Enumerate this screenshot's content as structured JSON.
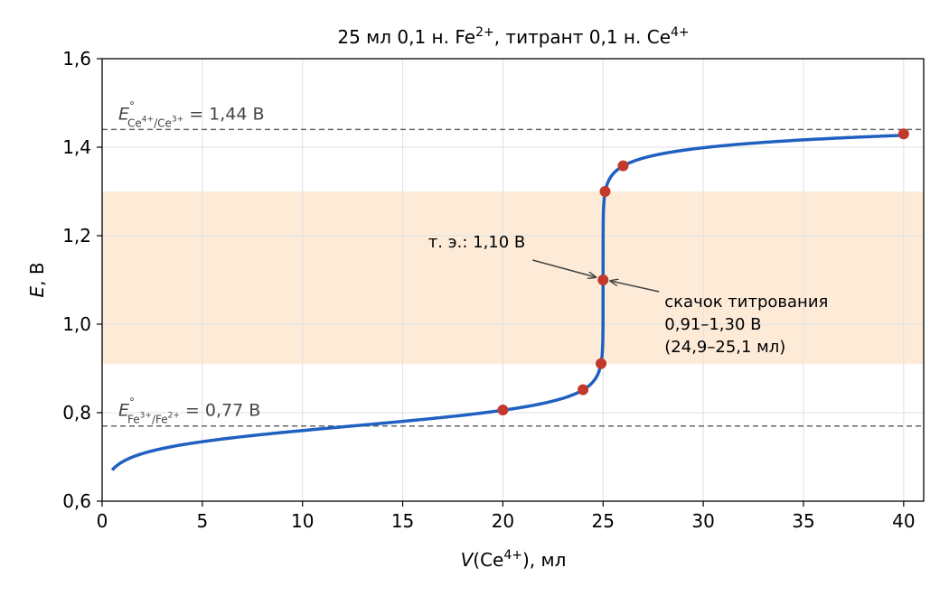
{
  "chart_data": {
    "type": "line",
    "title": {
      "pre": "25 мл 0,1 н. Fe",
      "sup1": "2+",
      "mid": ", титрант 0,1 н. Ce",
      "sup2": "4+"
    },
    "xlabel": {
      "var": "V",
      "open": "(Ce",
      "sup": "4+",
      "close": "), мл"
    },
    "ylabel": {
      "var": "E",
      "rest": ", В"
    },
    "xlim": [
      0,
      41
    ],
    "ylim": [
      0.6,
      1.6
    ],
    "xticks": [
      {
        "value": 0,
        "label": "0"
      },
      {
        "value": 5,
        "label": "5"
      },
      {
        "value": 10,
        "label": "10"
      },
      {
        "value": 15,
        "label": "15"
      },
      {
        "value": 20,
        "label": "20"
      },
      {
        "value": 25,
        "label": "25"
      },
      {
        "value": 30,
        "label": "30"
      },
      {
        "value": 35,
        "label": "35"
      },
      {
        "value": 40,
        "label": "40"
      }
    ],
    "yticks": [
      {
        "value": 0.6,
        "label": "0,6"
      },
      {
        "value": 0.8,
        "label": "0,8"
      },
      {
        "value": 1.0,
        "label": "1,0"
      },
      {
        "value": 1.2,
        "label": "1,2"
      },
      {
        "value": 1.4,
        "label": "1,4"
      },
      {
        "value": 1.6,
        "label": "1,6"
      }
    ],
    "grid": true,
    "model": {
      "E1": 0.77,
      "E2": 1.44,
      "Veq": 25.0,
      "Vstart": 0.5,
      "Vend": 40.0
    },
    "series": [
      {
        "color": "#2060c0",
        "line_width": 3.5,
        "x": [
          0.5,
          1,
          2,
          3,
          5,
          7.5,
          10,
          12.5,
          15,
          17.5,
          20,
          22,
          23,
          24,
          24.5,
          24.8,
          24.9,
          24.97,
          25.0,
          25.03,
          25.1,
          25.2,
          25.5,
          26,
          27,
          28,
          30,
          32.5,
          35,
          37.5,
          40
        ],
        "y": [
          0.67,
          0.688,
          0.706,
          0.717,
          0.734,
          0.748,
          0.759,
          0.769,
          0.779,
          0.791,
          0.806,
          0.823,
          0.835,
          0.852,
          0.87,
          0.893,
          0.911,
          0.94,
          1.1,
          1.26,
          1.3,
          1.317,
          1.34,
          1.358,
          1.376,
          1.386,
          1.398,
          1.408,
          1.414,
          1.419,
          1.428
        ]
      }
    ],
    "markers": {
      "color": "#c0392b",
      "points": [
        {
          "x": 20,
          "y": 0.806
        },
        {
          "x": 24,
          "y": 0.852
        },
        {
          "x": 24.9,
          "y": 0.911
        },
        {
          "x": 25.0,
          "y": 1.1
        },
        {
          "x": 25.1,
          "y": 1.3
        },
        {
          "x": 26,
          "y": 1.358
        },
        {
          "x": 40,
          "y": 1.43
        }
      ]
    },
    "band": {
      "y_from": 0.91,
      "y_to": 1.3,
      "color": "#fdebd8"
    },
    "reference_lines": [
      {
        "y": 1.44,
        "var": "E",
        "deg": "°",
        "sub_a": "Ce",
        "sup_a": "4+",
        "slash": "/Ce",
        "sup_b": "3+",
        "value_text": " = 1,44 В"
      },
      {
        "y": 0.77,
        "var": "E",
        "deg": "°",
        "sub_a": "Fe",
        "sup_a": "3+",
        "slash": "/Fe",
        "sup_b": "2+",
        "value_text": " = 0,77 В"
      }
    ],
    "annotations": [
      {
        "text_lines": [
          "т. э.: 1,10 В"
        ],
        "points_to": {
          "x": 25.0,
          "y": 1.1
        },
        "anchor_side": "left"
      },
      {
        "text_lines": [
          "скачок титрования",
          "0,91–1,30 В",
          "(24,9–25,1 мл)"
        ],
        "points_to": {
          "x": 25.0,
          "y": 1.1
        },
        "anchor_side": "right"
      }
    ]
  }
}
